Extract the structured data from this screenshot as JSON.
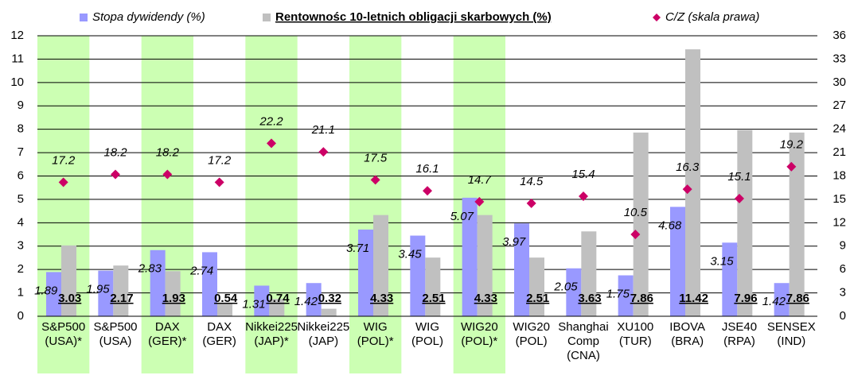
{
  "chart_data": {
    "type": "bar_scatter_combo",
    "categories": [
      [
        "S&P500",
        "(USA)*"
      ],
      [
        "S&P500",
        "(USA)"
      ],
      [
        "DAX",
        "(GER)*"
      ],
      [
        "DAX",
        "(GER)"
      ],
      [
        "Nikkei225",
        "(JAP)*"
      ],
      [
        "Nikkei225",
        "(JAP)"
      ],
      [
        "WIG",
        "(POL)*"
      ],
      [
        "WIG",
        "(POL)"
      ],
      [
        "WIG20",
        "(POL)*"
      ],
      [
        "WIG20",
        "(POL)"
      ],
      [
        "Shanghai",
        "Comp",
        "(CNA)"
      ],
      [
        "XU100",
        "(TUR)"
      ],
      [
        "IBOVA",
        "(BRA)"
      ],
      [
        "JSE40",
        "(RPA)"
      ],
      [
        "SENSEX",
        "(IND)"
      ]
    ],
    "highlighted_categories": [
      0,
      2,
      4,
      6,
      8
    ],
    "highlight_color": "#ccffb3",
    "series": [
      {
        "name": "Stopa dywidendy (%)",
        "color": "#9999ff",
        "type": "bar",
        "axis": "y",
        "values": [
          1.89,
          1.95,
          2.83,
          2.74,
          1.31,
          1.42,
          3.71,
          3.45,
          5.07,
          3.97,
          2.05,
          1.75,
          4.68,
          3.15,
          1.42
        ]
      },
      {
        "name": "Rentownośc 10-letnich obligacji skarbowych (%)",
        "color": "#c0c0c0",
        "type": "bar",
        "axis": "y",
        "values": [
          3.03,
          2.17,
          1.93,
          0.54,
          0.74,
          0.32,
          4.33,
          2.51,
          4.33,
          2.51,
          3.63,
          7.86,
          11.42,
          7.96,
          7.86
        ]
      },
      {
        "name": "C/Z (skala prawa)",
        "color": "#cc0066",
        "type": "scatter",
        "axis": "y2",
        "values": [
          17.2,
          18.2,
          18.2,
          17.2,
          22.2,
          21.1,
          17.5,
          16.1,
          14.7,
          14.5,
          15.4,
          10.5,
          16.3,
          15.1,
          19.2
        ]
      }
    ],
    "ylim": [
      0,
      12
    ],
    "yticks": [
      0,
      1,
      2,
      3,
      4,
      5,
      6,
      7,
      8,
      9,
      10,
      11,
      12
    ],
    "y2lim": [
      0,
      36
    ],
    "y2ticks": [
      0,
      3,
      6,
      9,
      12,
      15,
      18,
      21,
      24,
      27,
      30,
      33,
      36
    ],
    "grid": true,
    "legend": "top",
    "data_labels": true
  }
}
